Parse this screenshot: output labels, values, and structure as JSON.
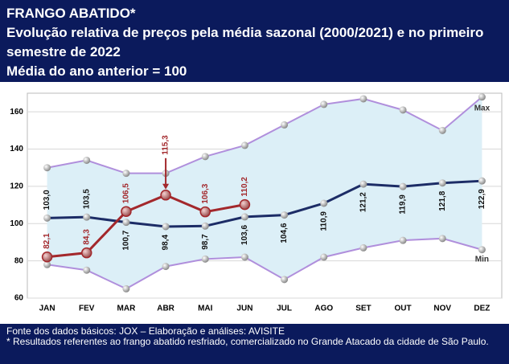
{
  "chart_data": {
    "type": "line",
    "title": "FRANGO ABATIDO*",
    "subtitle": "Evolução relativa de preços pela média sazonal (2000/2021) e no primeiro semestre de 2022",
    "note": "Média do ano anterior = 100",
    "categories": [
      "JAN",
      "FEV",
      "MAR",
      "ABR",
      "MAI",
      "JUN",
      "JUL",
      "AGO",
      "SET",
      "OUT",
      "NOV",
      "DEZ"
    ],
    "series": [
      {
        "name": "Max",
        "color": "#b08fdc",
        "values": [
          130,
          134,
          127,
          127,
          136,
          142,
          153,
          164,
          167,
          161,
          150,
          168
        ]
      },
      {
        "name": "Min",
        "color": "#b08fdc",
        "values": [
          78,
          75,
          65,
          77,
          81,
          82,
          70,
          82,
          87,
          91,
          92,
          86
        ]
      },
      {
        "color": "#1c2c66",
        "values": [
          103.0,
          103.5,
          100.7,
          98.4,
          98.7,
          103.6,
          104.6,
          110.9,
          121.2,
          119.9,
          121.8,
          122.9
        ],
        "value_labels": [
          "103,0",
          "103,5",
          "100,7",
          "98,4",
          "98,7",
          "103,6",
          "104,6",
          "110,9",
          "121,2",
          "119,9",
          "121,8",
          "122,9"
        ]
      },
      {
        "color": "#a3282c",
        "values": [
          82.1,
          84.3,
          106.5,
          115.3,
          106.3,
          110.2,
          null,
          null,
          null,
          null,
          null,
          null
        ],
        "value_labels": [
          "82,1",
          "84,3",
          "106,5",
          "115,3",
          "106,3",
          "110,2",
          null,
          null,
          null,
          null,
          null,
          null
        ]
      }
    ],
    "band_color": "#dcefF7",
    "ylim": [
      60,
      170
    ],
    "yticks": [
      60,
      80,
      100,
      120,
      140,
      160
    ],
    "grid": true,
    "source": "Fonte dos dados básicos: JOX – Elaboração e análises: AVISITE",
    "footnote": "* Resultados referentes ao frango abatido resfriado, comercializado no Grande Atacado da cidade de São Paulo."
  }
}
